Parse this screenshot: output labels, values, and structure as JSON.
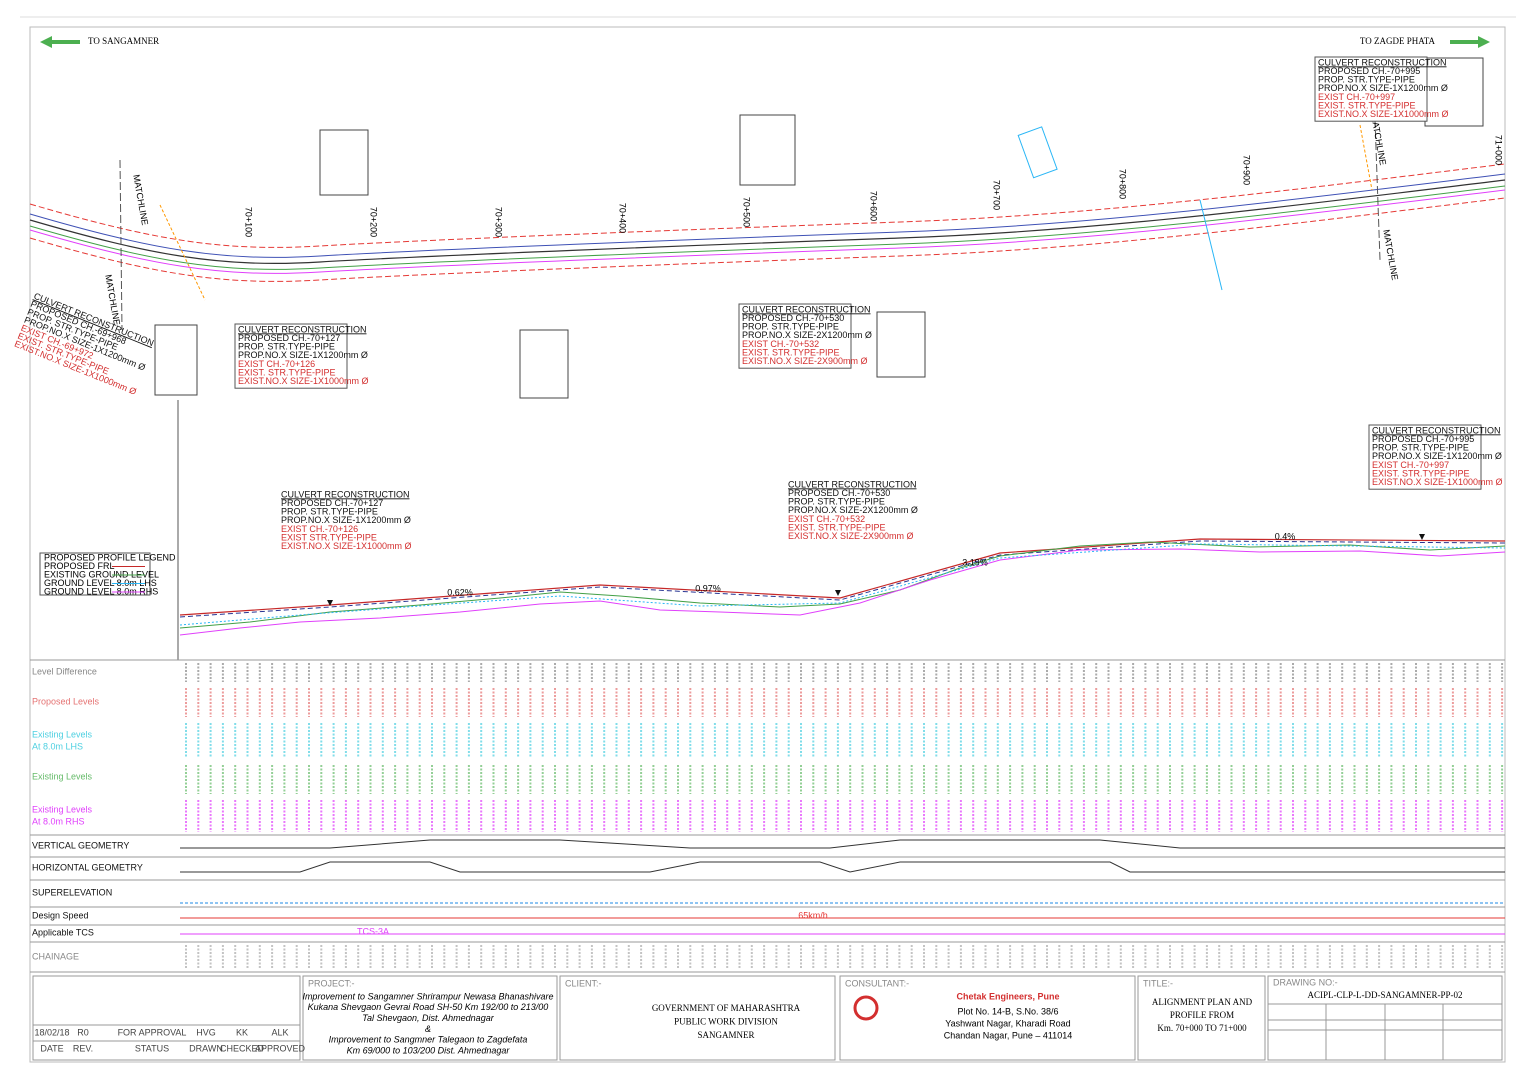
{
  "directions": {
    "left": "TO SANGAMNER",
    "right": "TO ZAGDE PHATA"
  },
  "matchlines": [
    "MATCHLINE",
    "MATCHLINE",
    "MATCHLINE",
    "MATCHLINE"
  ],
  "chainage_marks": [
    "70+100",
    "70+200",
    "70+300",
    "70+400",
    "70+500",
    "70+600",
    "70+700",
    "70+800",
    "70+900",
    "71+000"
  ],
  "plan_culverts": [
    {
      "lines": [
        "CULVERT RECONSTRUCTION",
        "PROPOSED CH.-69+968",
        "PROP. STR.TYPE-PIPE",
        "PROP.NO.X SIZE-1X1200mm Ø",
        "EXIST CH.-69+972",
        "EXIST. STR.TYPE-PIPE",
        "EXIST.NO.X SIZE-1X1000mm Ø"
      ]
    },
    {
      "lines": [
        "CULVERT RECONSTRUCTION",
        "PROPOSED CH.-70+127",
        "PROP. STR.TYPE-PIPE",
        "PROP.NO.X SIZE-1X1200mm Ø",
        "EXIST CH.-70+126",
        "EXIST. STR.TYPE-PIPE",
        "EXIST.NO.X SIZE-1X1000mm Ø"
      ]
    },
    {
      "lines": [
        "CULVERT RECONSTRUCTION",
        "PROPOSED CH.-70+530",
        "PROP. STR.TYPE-PIPE",
        "PROP.NO.X SIZE-2X1200mm Ø",
        "EXIST CH.-70+532",
        "EXIST. STR.TYPE-PIPE",
        "EXIST.NO.X SIZE-2X900mm Ø"
      ]
    },
    {
      "lines": [
        "CULVERT RECONSTRUCTION",
        "PROPOSED CH.-70+995",
        "PROP. STR.TYPE-PIPE",
        "PROP.NO.X SIZE-1X1200mm Ø",
        "EXIST CH.-70+997",
        "EXIST. STR.TYPE-PIPE",
        "EXIST.NO.X SIZE-1X1000mm Ø"
      ]
    }
  ],
  "profile_culverts": [
    {
      "lines": [
        "CULVERT RECONSTRUCTION",
        "PROPOSED CH.-70+127",
        "PROP.        STR.TYPE-PIPE",
        "PROP.NO.X SIZE-1X1200mm Ø",
        "EXIST CH.-70+126",
        "EXIST          STR.TYPE-PIPE",
        "EXIST.NO.X SIZE-1X1000mm Ø"
      ]
    },
    {
      "lines": [
        "CULVERT RECONSTRUCTION",
        "PROPOSED CH.-70+530",
        "PROP.        STR.TYPE-PIPE",
        "PROP.NO.X SIZE-2X1200mm Ø",
        "EXIST CH.-70+532",
        "EXIST.         STR.TYPE-PIPE",
        "EXIST.NO.X SIZE-2X900mm Ø"
      ]
    },
    {
      "lines": [
        "CULVERT RECONSTRUCTION",
        "PROPOSED CH.-70+995",
        "PROP.        STR.TYPE-PIPE",
        "PROP.NO.X SIZE-1X1200mm Ø",
        "EXIST CH.-70+997",
        "EXIST.         STR.TYPE-PIPE",
        "EXIST.NO.X SIZE-1X1000mm Ø"
      ]
    }
  ],
  "profile_legend": [
    "PROPOSED PROFILE LEGEND",
    "PROPOSED FRL",
    "EXISTING GROUND LEVEL",
    "GROUND LEVEL 8.0m LHS",
    "GROUND LEVEL 8.0m RHS"
  ],
  "grades": [
    "0.62%",
    "0.97%",
    "3.19%",
    "0.4%"
  ],
  "table_rows": {
    "level_difference": "Level Difference",
    "proposed_levels": "Proposed Levels",
    "existing_lhs": [
      "Existing Levels",
      "At 8.0m LHS"
    ],
    "existing_levels": "Existing Levels",
    "existing_rhs": [
      "Existing Levels",
      "At 8.0m RHS"
    ],
    "vertical_geometry": "VERTICAL GEOMETRY",
    "horizontal_geometry": "HORIZONTAL GEOMETRY",
    "superelevation": "SUPERELEVATION",
    "design_speed": "Design Speed",
    "applicable_tcs": "Applicable TCS",
    "chainage": "CHAINAGE"
  },
  "design_speed_value": "65km/h",
  "tcs_value": "TCS-3A",
  "revision": {
    "headers": [
      "DATE",
      "REV.",
      "STATUS",
      "DRAWN",
      "CHECKED",
      "APPROVED"
    ],
    "row": [
      "18/02/18",
      "R0",
      "FOR APPROVAL",
      "HVG",
      "KK",
      "ALK"
    ]
  },
  "project": {
    "label": "PROJECT:-",
    "lines": [
      "Improvement to Sangamner Shrirampur Newasa Bhanashivare",
      "Kukana Shevgaon Gevrai Road SH-50 Km 192/00 to 213/00",
      "Tal Shevgaon,        Dist. Ahmednagar",
      "&",
      "Improvement to Sangmner Talegaon to Zagdefata",
      "Km 69/000 to 103/200 Dist. Ahmednagar"
    ]
  },
  "client": {
    "label": "CLIENT:-",
    "lines": [
      "GOVERNMENT OF MAHARASHTRA",
      "PUBLIC WORK DIVISION",
      "SANGAMNER"
    ]
  },
  "consultant": {
    "label": "CONSULTANT:-",
    "name": "Chetak Engineers, Pune",
    "lines": [
      "Plot No. 14-B, S.No. 38/6",
      "Yashwant Nagar, Kharadi Road",
      "Chandan Nagar, Pune – 411014"
    ]
  },
  "title": {
    "label": "TITLE:-",
    "lines": [
      "ALIGNMENT PLAN AND",
      "PROFILE FROM",
      "Km. 70+000 TO 71+000"
    ]
  },
  "drawing": {
    "label": "DRAWING NO:-",
    "number": "ACIPL-CLP-L-DD-SANGAMNER-PP-02"
  }
}
